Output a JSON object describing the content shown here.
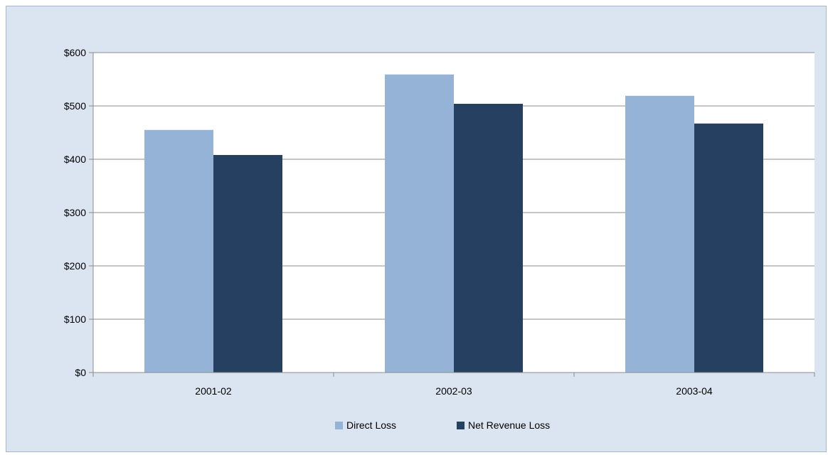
{
  "chart_data": {
    "type": "bar",
    "title": "",
    "xlabel": "",
    "ylabel": "",
    "categories": [
      "2001-02",
      "2002-03",
      "2003-04"
    ],
    "series": [
      {
        "name": "Direct Loss",
        "color": "#95b3d7",
        "values": [
          455,
          559,
          519
        ]
      },
      {
        "name": "Net Revenue Loss",
        "color": "#254061",
        "values": [
          408,
          504,
          467
        ]
      }
    ],
    "ylim": [
      0,
      600
    ],
    "yticks": [
      0,
      100,
      200,
      300,
      400,
      500,
      600
    ],
    "ytick_labels": [
      "$0",
      "$100",
      "$200",
      "$300",
      "$400",
      "$500",
      "$600"
    ],
    "grid": true,
    "legend_position": "bottom",
    "colors": {
      "background": "#dbe5f1",
      "plot_area": "#ffffff",
      "gridline": "#8c8c8c"
    }
  }
}
